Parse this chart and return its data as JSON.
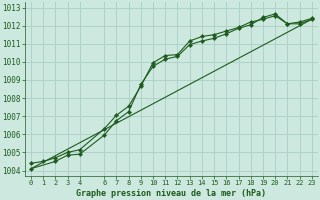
{
  "title": "Graphe pression niveau de la mer (hPa)",
  "background_color": "#cce8df",
  "grid_color": "#aacfc5",
  "line_color": "#1e5c1e",
  "xlim": [
    -0.5,
    23.5
  ],
  "ylim": [
    1003.7,
    1013.3
  ],
  "xticks": [
    0,
    1,
    2,
    3,
    4,
    6,
    7,
    8,
    9,
    10,
    11,
    12,
    13,
    14,
    15,
    16,
    17,
    18,
    19,
    20,
    21,
    22,
    23
  ],
  "yticks": [
    1004,
    1005,
    1006,
    1007,
    1008,
    1009,
    1010,
    1011,
    1012,
    1013
  ],
  "series1_x": [
    0,
    1,
    2,
    3,
    4,
    6,
    7,
    8,
    9,
    10,
    11,
    12,
    13,
    14,
    15,
    16,
    17,
    18,
    19,
    20,
    21,
    22,
    23
  ],
  "series1_y": [
    1004.4,
    1004.5,
    1004.7,
    1005.0,
    1005.15,
    1006.3,
    1007.05,
    1007.55,
    1008.65,
    1009.95,
    1010.35,
    1010.4,
    1011.15,
    1011.4,
    1011.5,
    1011.7,
    1011.9,
    1012.2,
    1012.35,
    1012.55,
    1012.1,
    1012.2,
    1012.4
  ],
  "series2_x": [
    0,
    2,
    3,
    4,
    6,
    7,
    8,
    9,
    10,
    11,
    12,
    13,
    14,
    15,
    16,
    17,
    18,
    19,
    20,
    21,
    22,
    23
  ],
  "series2_y": [
    1004.1,
    1004.5,
    1004.85,
    1004.9,
    1005.95,
    1006.75,
    1007.25,
    1008.75,
    1009.75,
    1010.15,
    1010.3,
    1010.95,
    1011.15,
    1011.3,
    1011.55,
    1011.85,
    1012.05,
    1012.45,
    1012.65,
    1012.1,
    1012.1,
    1012.35
  ],
  "series3_x": [
    0,
    23
  ],
  "series3_y": [
    1004.1,
    1012.35
  ],
  "figsize": [
    3.2,
    2.0
  ],
  "dpi": 100
}
